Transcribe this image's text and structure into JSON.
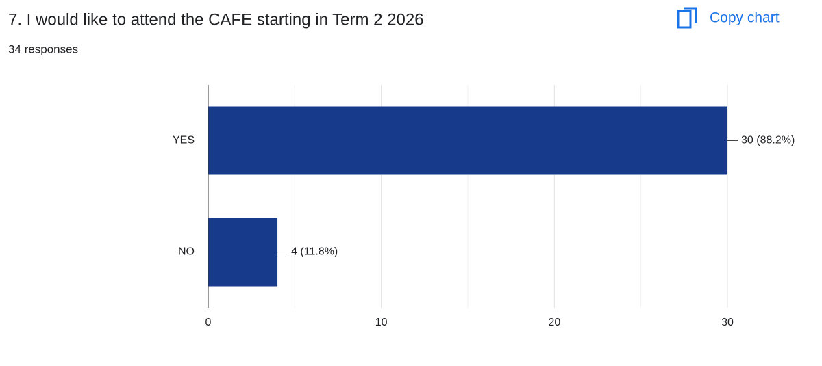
{
  "chart_data": {
    "type": "hbar",
    "title": "7. I would like to attend the CAFE starting in Term 2 2026",
    "subtitle": "34 responses",
    "button": "Copy chart",
    "categories": [
      "YES",
      "NO"
    ],
    "values": [
      30,
      4
    ],
    "value_labels": [
      "30 (88.2%)",
      "4 (11.8%)"
    ],
    "color": "#183a8a",
    "xlim": [
      0,
      30
    ],
    "xticks": [
      0,
      10,
      20,
      30
    ],
    "minor_gridlines": [
      5,
      15,
      25
    ],
    "grid": true
  }
}
